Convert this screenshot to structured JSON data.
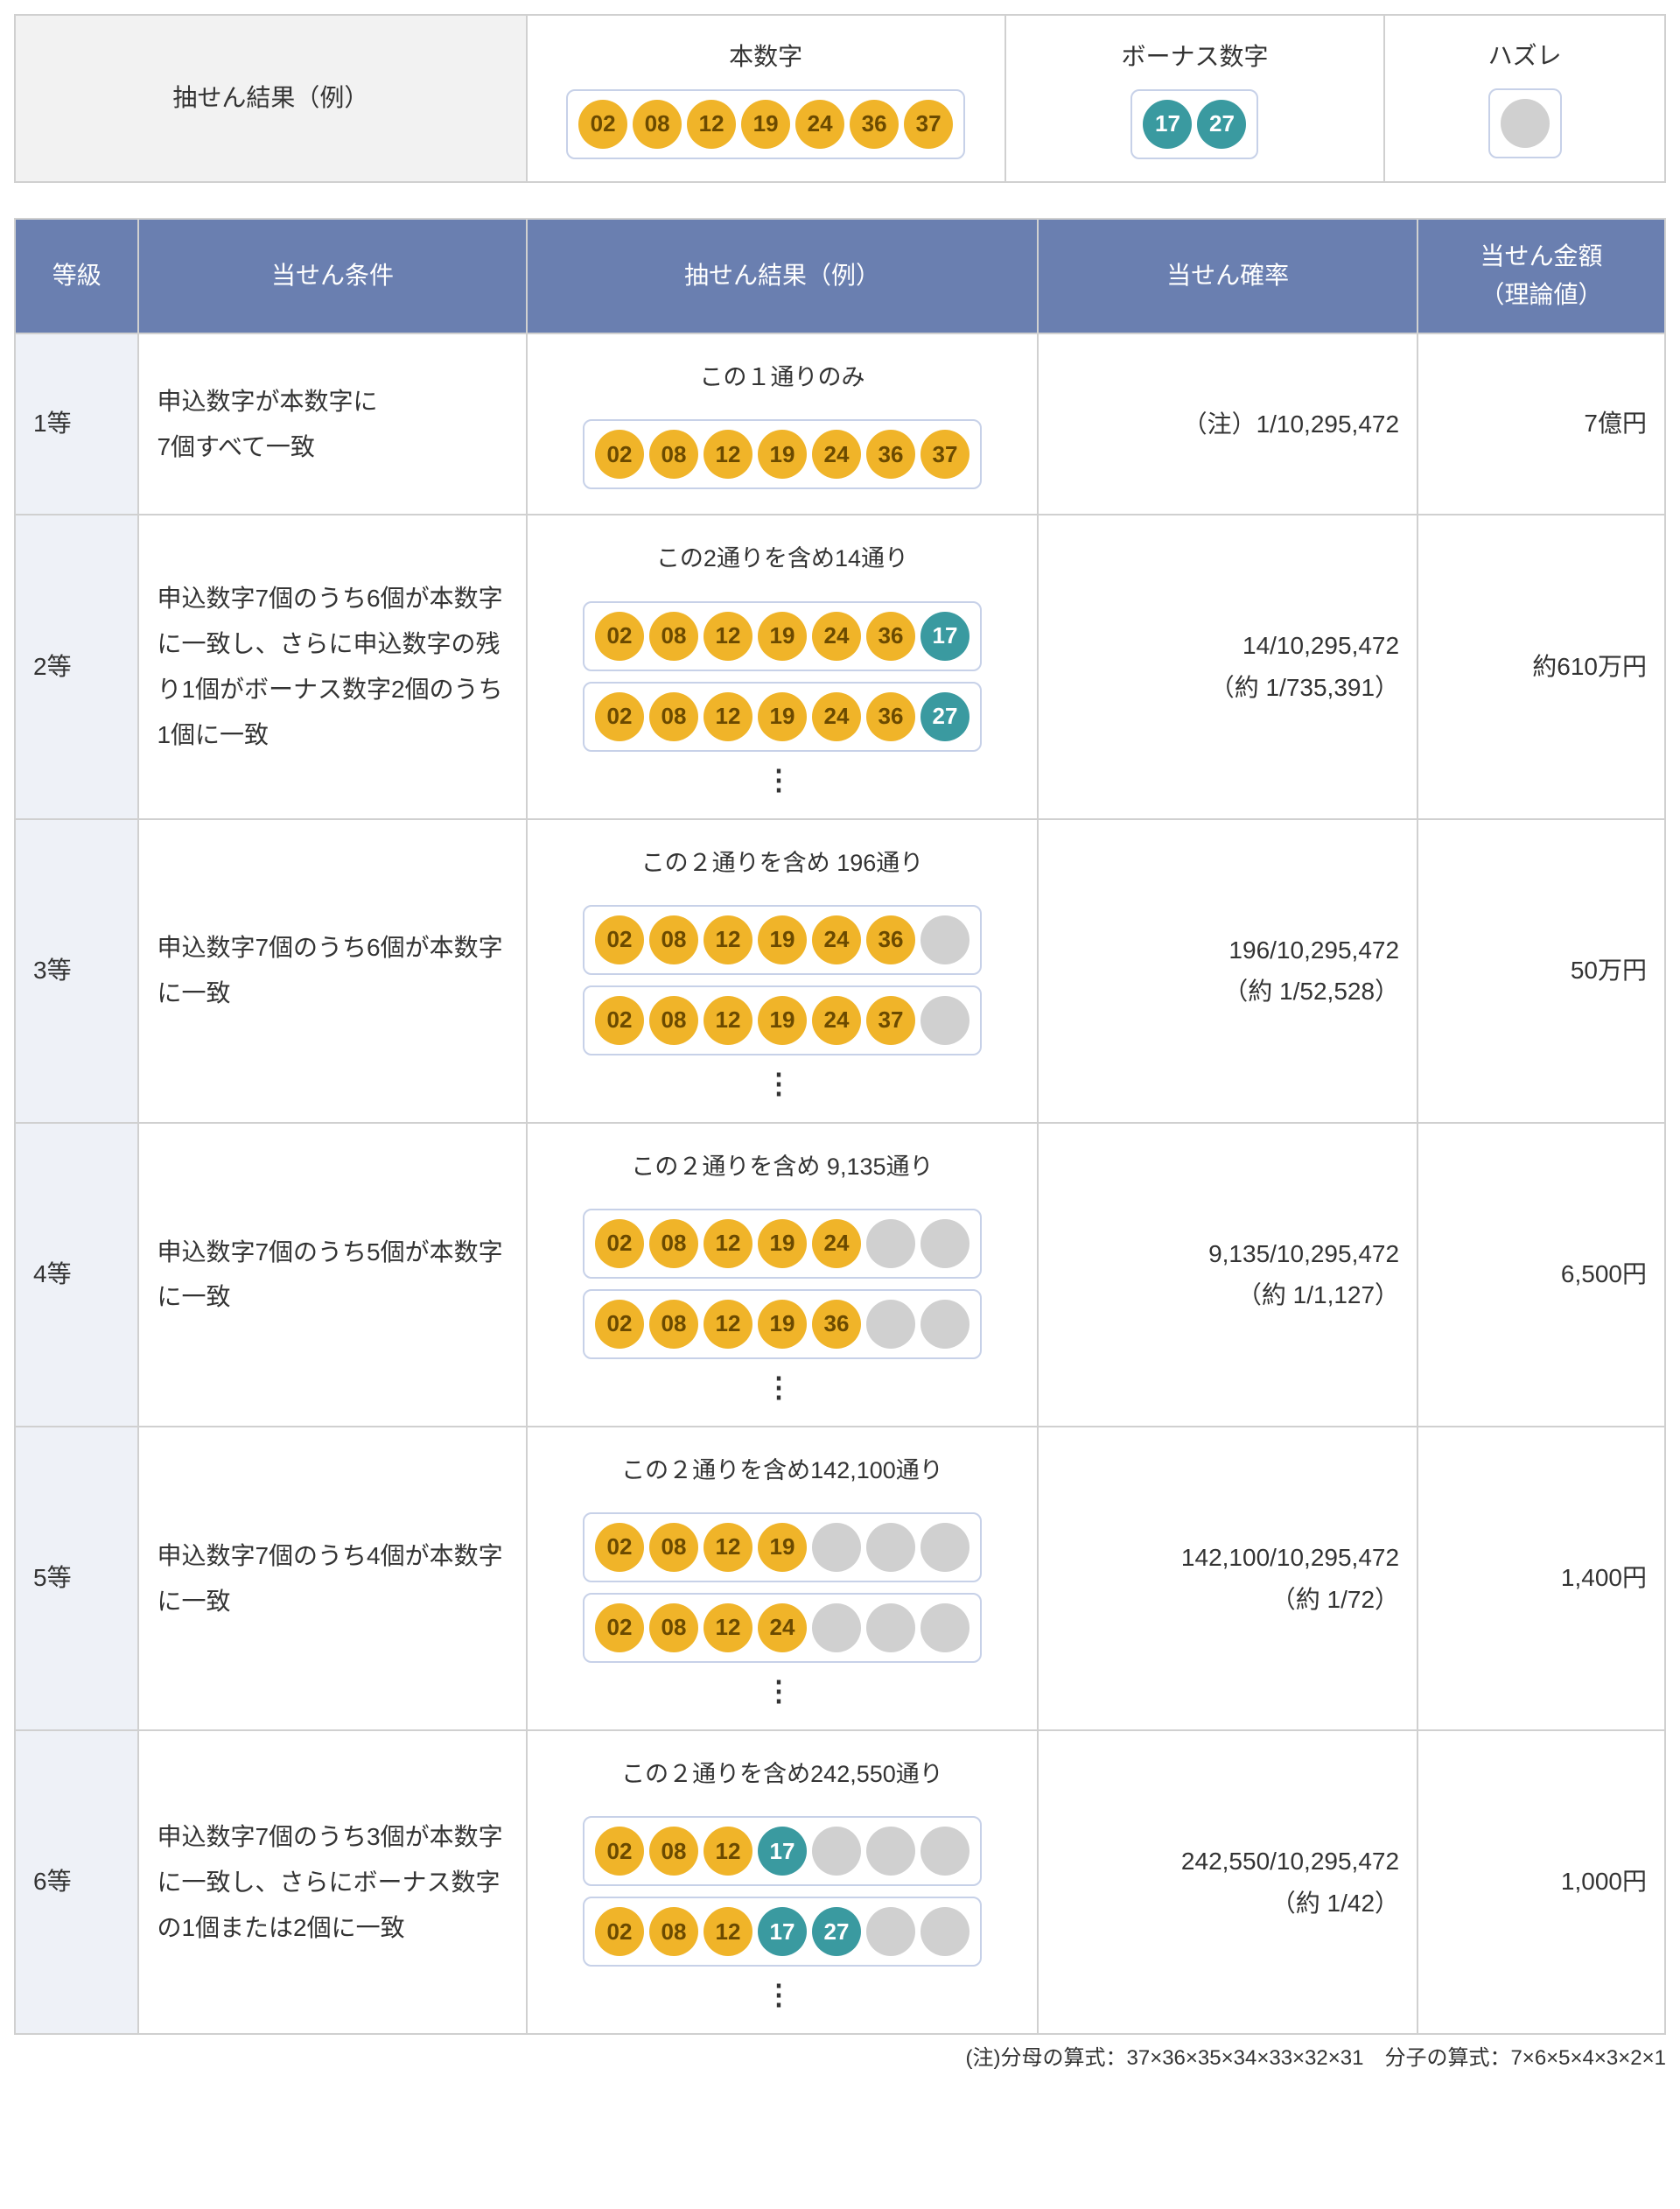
{
  "colors": {
    "main_ball_bg": "#f0b429",
    "main_ball_fg": "#6b4a00",
    "bonus_ball_bg": "#3a9aa0",
    "bonus_ball_fg": "#ffffff",
    "miss_ball_bg": "#d0d0d0",
    "header_bg": "#6a7fb0",
    "header_fg": "#ffffff",
    "grade_cell_bg": "#eef1f7",
    "border": "#d0d0d0",
    "boxed_border": "#c7d1e8"
  },
  "top": {
    "label": "抽せん結果（例）",
    "main_heading": "本数字",
    "bonus_heading": "ボーナス数字",
    "miss_heading": "ハズレ",
    "main_numbers": [
      "02",
      "08",
      "12",
      "19",
      "24",
      "36",
      "37"
    ],
    "bonus_numbers": [
      "17",
      "27"
    ]
  },
  "columns": {
    "grade": "等級",
    "condition": "当せん条件",
    "example": "抽せん結果（例）",
    "probability": "当せん確率",
    "prize": "当せん金額\n（理論値）"
  },
  "rows": [
    {
      "grade": "1等",
      "condition": "申込数字が本数字に\n7個すべて一致",
      "caption": "この１通りのみ",
      "ballsets": [
        [
          [
            "02",
            "m"
          ],
          [
            "08",
            "m"
          ],
          [
            "12",
            "m"
          ],
          [
            "19",
            "m"
          ],
          [
            "24",
            "m"
          ],
          [
            "36",
            "m"
          ],
          [
            "37",
            "m"
          ]
        ]
      ],
      "dots": false,
      "probability": "（注）1/10,295,472",
      "prize": "7億円"
    },
    {
      "grade": "2等",
      "condition": "申込数字7個のうち6個が本数字に一致し、さらに申込数字の残り1個がボーナス数字2個のうち1個に一致",
      "caption": "この2通りを含め14通り",
      "ballsets": [
        [
          [
            "02",
            "m"
          ],
          [
            "08",
            "m"
          ],
          [
            "12",
            "m"
          ],
          [
            "19",
            "m"
          ],
          [
            "24",
            "m"
          ],
          [
            "36",
            "m"
          ],
          [
            "17",
            "b"
          ]
        ],
        [
          [
            "02",
            "m"
          ],
          [
            "08",
            "m"
          ],
          [
            "12",
            "m"
          ],
          [
            "19",
            "m"
          ],
          [
            "24",
            "m"
          ],
          [
            "36",
            "m"
          ],
          [
            "27",
            "b"
          ]
        ]
      ],
      "dots": true,
      "probability": "14/10,295,472\n（約 1/735,391）",
      "prize": "約610万円"
    },
    {
      "grade": "3等",
      "condition": "申込数字7個のうち6個が本数字に一致",
      "caption": "この２通りを含め 196通り",
      "ballsets": [
        [
          [
            "02",
            "m"
          ],
          [
            "08",
            "m"
          ],
          [
            "12",
            "m"
          ],
          [
            "19",
            "m"
          ],
          [
            "24",
            "m"
          ],
          [
            "36",
            "m"
          ],
          [
            "",
            "x"
          ]
        ],
        [
          [
            "02",
            "m"
          ],
          [
            "08",
            "m"
          ],
          [
            "12",
            "m"
          ],
          [
            "19",
            "m"
          ],
          [
            "24",
            "m"
          ],
          [
            "37",
            "m"
          ],
          [
            "",
            "x"
          ]
        ]
      ],
      "dots": true,
      "probability": "196/10,295,472\n（約 1/52,528）",
      "prize": "50万円"
    },
    {
      "grade": "4等",
      "condition": "申込数字7個のうち5個が本数字に一致",
      "caption": "この２通りを含め 9,135通り",
      "ballsets": [
        [
          [
            "02",
            "m"
          ],
          [
            "08",
            "m"
          ],
          [
            "12",
            "m"
          ],
          [
            "19",
            "m"
          ],
          [
            "24",
            "m"
          ],
          [
            "",
            "x"
          ],
          [
            "",
            "x"
          ]
        ],
        [
          [
            "02",
            "m"
          ],
          [
            "08",
            "m"
          ],
          [
            "12",
            "m"
          ],
          [
            "19",
            "m"
          ],
          [
            "36",
            "m"
          ],
          [
            "",
            "x"
          ],
          [
            "",
            "x"
          ]
        ]
      ],
      "dots": true,
      "probability": "9,135/10,295,472\n（約 1/1,127）",
      "prize": "6,500円"
    },
    {
      "grade": "5等",
      "condition": "申込数字7個のうち4個が本数字に一致",
      "caption": "この２通りを含め142,100通り",
      "ballsets": [
        [
          [
            "02",
            "m"
          ],
          [
            "08",
            "m"
          ],
          [
            "12",
            "m"
          ],
          [
            "19",
            "m"
          ],
          [
            "",
            "x"
          ],
          [
            "",
            "x"
          ],
          [
            "",
            "x"
          ]
        ],
        [
          [
            "02",
            "m"
          ],
          [
            "08",
            "m"
          ],
          [
            "12",
            "m"
          ],
          [
            "24",
            "m"
          ],
          [
            "",
            "x"
          ],
          [
            "",
            "x"
          ],
          [
            "",
            "x"
          ]
        ]
      ],
      "dots": true,
      "probability": "142,100/10,295,472\n（約 1/72）",
      "prize": "1,400円"
    },
    {
      "grade": "6等",
      "condition": "申込数字7個のうち3個が本数字に一致し、さらにボーナス数字の1個または2個に一致",
      "caption": "この２通りを含め242,550通り",
      "ballsets": [
        [
          [
            "02",
            "m"
          ],
          [
            "08",
            "m"
          ],
          [
            "12",
            "m"
          ],
          [
            "17",
            "b"
          ],
          [
            "",
            "x"
          ],
          [
            "",
            "x"
          ],
          [
            "",
            "x"
          ]
        ],
        [
          [
            "02",
            "m"
          ],
          [
            "08",
            "m"
          ],
          [
            "12",
            "m"
          ],
          [
            "17",
            "b"
          ],
          [
            "27",
            "b"
          ],
          [
            "",
            "x"
          ],
          [
            "",
            "x"
          ]
        ]
      ],
      "dots": true,
      "probability": "242,550/10,295,472\n（約 1/42）",
      "prize": "1,000円"
    }
  ],
  "footnote": "(注)分母の算式：37×36×35×34×33×32×31　分子の算式：7×6×5×4×3×2×1"
}
